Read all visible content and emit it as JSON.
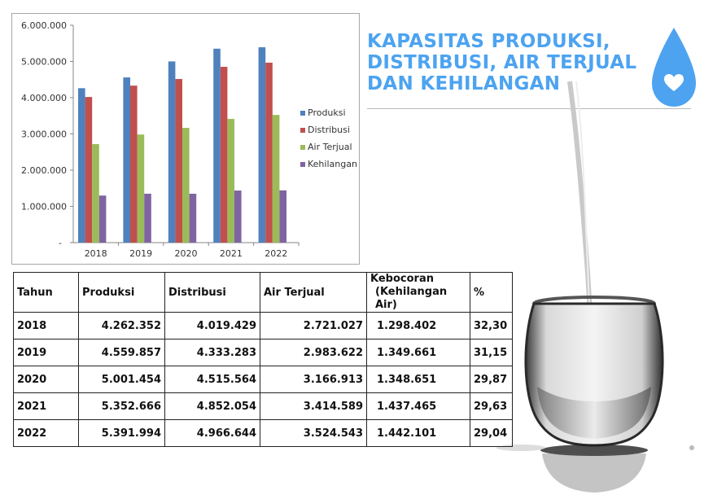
{
  "title": {
    "line1": "KAPASITAS PRODUKSI,",
    "line2": "DISTRIBUSI, AIR TERJUAL",
    "line3": "DAN KEHILANGAN"
  },
  "colors": {
    "title": "#4da3f0",
    "drop": "#4da3f0",
    "produksi": "#4f81bd",
    "distribusi": "#c0504d",
    "air_terjual": "#9bbb59",
    "kehilangan": "#8064a2"
  },
  "icons": [
    "water-drop-heart-icon",
    "water-glass-image"
  ],
  "chart_data": {
    "type": "bar",
    "categories": [
      "2018",
      "2019",
      "2020",
      "2021",
      "2022"
    ],
    "series": [
      {
        "name": "Produksi",
        "values": [
          4262352,
          4559857,
          5001454,
          5352666,
          5391994
        ]
      },
      {
        "name": "Distribusi",
        "values": [
          4019429,
          4333283,
          4515564,
          4852054,
          4966644
        ]
      },
      {
        "name": "Air Terjual",
        "values": [
          2721027,
          2983622,
          3166913,
          3414589,
          3524543
        ]
      },
      {
        "name": "Kehilangan",
        "values": [
          1298402,
          1349661,
          1348651,
          1437465,
          1442101
        ]
      }
    ],
    "ylim": [
      0,
      6000000
    ],
    "yticks": [
      "-",
      "1.000.000",
      "2.000.000",
      "3.000.000",
      "4.000.000",
      "5.000.000",
      "6.000.000"
    ],
    "grid": false,
    "legend": "right"
  },
  "table": {
    "headers": [
      "Tahun",
      "Produksi",
      "Distribusi",
      "Air Terjual",
      "Kebocoran",
      "(Kehilangan Air)",
      "%"
    ],
    "rows": [
      [
        "2018",
        "4.262.352",
        "4.019.429",
        "2.721.027",
        "1.298.402",
        "32,30"
      ],
      [
        "2019",
        "4.559.857",
        "4.333.283",
        "2.983.622",
        "1.349.661",
        "31,15"
      ],
      [
        "2020",
        "5.001.454",
        "4.515.564",
        "3.166.913",
        "1.348.651",
        "29,87"
      ],
      [
        "2021",
        "5.352.666",
        "4.852.054",
        "3.414.589",
        "1.437.465",
        "29,63"
      ],
      [
        "2022",
        "5.391.994",
        "4.966.644",
        "3.524.543",
        "1.442.101",
        "29,04"
      ]
    ]
  }
}
